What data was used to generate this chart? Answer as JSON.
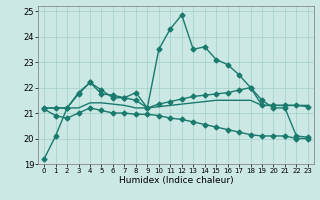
{
  "xlabel": "Humidex (Indice chaleur)",
  "bg_color": "#cce8e4",
  "line_color": "#1a7a6e",
  "grid_color": "#aad4ce",
  "xlim": [
    -0.5,
    23.5
  ],
  "ylim": [
    19,
    25.2
  ],
  "xticks": [
    0,
    1,
    2,
    3,
    4,
    5,
    6,
    7,
    8,
    9,
    10,
    11,
    12,
    13,
    14,
    15,
    16,
    17,
    18,
    19,
    20,
    21,
    22,
    23
  ],
  "yticks": [
    19,
    20,
    21,
    22,
    23,
    24,
    25
  ],
  "lines": [
    {
      "x": [
        0,
        1,
        2,
        3,
        4,
        5,
        6,
        7,
        8,
        9,
        10,
        11,
        12,
        13,
        14,
        15,
        16,
        17,
        18,
        19,
        20,
        21,
        22,
        23
      ],
      "y": [
        19.2,
        20.1,
        21.2,
        21.8,
        22.2,
        21.9,
        21.6,
        21.6,
        21.8,
        21.2,
        23.5,
        24.3,
        24.85,
        23.5,
        23.6,
        23.1,
        22.9,
        22.5,
        22.0,
        21.5,
        21.2,
        21.2,
        20.1,
        20.05
      ],
      "marker": "D",
      "marker_size": 2.5,
      "linewidth": 1.0
    },
    {
      "x": [
        0,
        1,
        2,
        3,
        4,
        5,
        6,
        7,
        8,
        9,
        10,
        11,
        12,
        13,
        14,
        15,
        16,
        17,
        18,
        19,
        20,
        21,
        22,
        23
      ],
      "y": [
        21.2,
        21.2,
        21.2,
        21.75,
        22.2,
        21.75,
        21.7,
        21.6,
        21.5,
        21.2,
        21.35,
        21.45,
        21.55,
        21.65,
        21.7,
        21.75,
        21.8,
        21.9,
        22.0,
        21.3,
        21.3,
        21.3,
        21.3,
        21.25
      ],
      "marker": "D",
      "marker_size": 2.5,
      "linewidth": 1.0
    },
    {
      "x": [
        0,
        1,
        2,
        3,
        4,
        5,
        6,
        7,
        8,
        9,
        10,
        11,
        12,
        13,
        14,
        15,
        16,
        17,
        18,
        19,
        20,
        21,
        22,
        23
      ],
      "y": [
        21.2,
        21.2,
        21.2,
        21.2,
        21.4,
        21.4,
        21.35,
        21.3,
        21.2,
        21.2,
        21.25,
        21.3,
        21.35,
        21.4,
        21.45,
        21.5,
        21.5,
        21.5,
        21.5,
        21.3,
        21.3,
        21.3,
        21.3,
        21.3
      ],
      "marker": null,
      "marker_size": 0,
      "linewidth": 1.0
    },
    {
      "x": [
        0,
        1,
        2,
        3,
        4,
        5,
        6,
        7,
        8,
        9,
        10,
        11,
        12,
        13,
        14,
        15,
        16,
        17,
        18,
        19,
        20,
        21,
        22,
        23
      ],
      "y": [
        21.15,
        20.9,
        20.8,
        21.0,
        21.2,
        21.1,
        21.0,
        21.0,
        20.95,
        20.95,
        20.9,
        20.8,
        20.75,
        20.65,
        20.55,
        20.45,
        20.35,
        20.25,
        20.15,
        20.1,
        20.1,
        20.1,
        20.0,
        20.0
      ],
      "marker": "D",
      "marker_size": 2.5,
      "linewidth": 1.0
    }
  ]
}
